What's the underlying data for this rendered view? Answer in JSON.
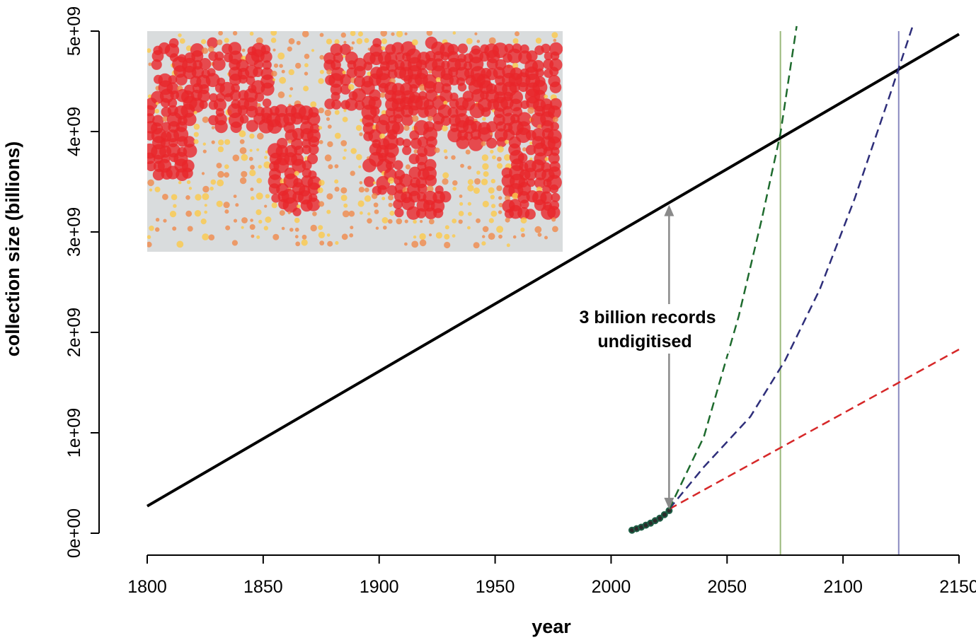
{
  "chart_data": {
    "type": "line",
    "title": "",
    "xlabel": "year",
    "ylabel": "collection size (billions)",
    "xlim": [
      1800,
      2150
    ],
    "ylim": [
      0,
      5000000000
    ],
    "x_ticks": [
      1800,
      1850,
      1900,
      1950,
      2000,
      2050,
      2100,
      2150
    ],
    "x_tick_labels": [
      "1800",
      "1850",
      "1900",
      "1950",
      "2000",
      "2050",
      "2100",
      "2150"
    ],
    "y_ticks": [
      0,
      1000000000,
      2000000000,
      3000000000,
      4000000000,
      5000000000
    ],
    "y_tick_labels": [
      "0e+00",
      "1e+09",
      "2e+09",
      "3e+09",
      "4e+09",
      "5e+09"
    ],
    "grid": false,
    "series": [
      {
        "style": "solid",
        "color": "#000000",
        "x": [
          1800,
          2150
        ],
        "y": [
          270000000,
          4970000000
        ]
      },
      {
        "style": "points",
        "color": "#1f5f46",
        "x": [
          2009,
          2011,
          2013,
          2015,
          2017,
          2019,
          2021,
          2023,
          2025
        ],
        "y": [
          30000000,
          45000000,
          60000000,
          80000000,
          100000000,
          125000000,
          150000000,
          185000000,
          225000000
        ]
      },
      {
        "style": "dashed",
        "color": "#d62728",
        "x": [
          2025,
          2150
        ],
        "y": [
          240000000,
          1830000000
        ]
      },
      {
        "style": "dashed",
        "color": "#2e2e7a",
        "x": [
          2025,
          2040,
          2060,
          2075,
          2090,
          2105,
          2120,
          2130
        ],
        "y": [
          240000000,
          660000000,
          1160000000,
          1720000000,
          2430000000,
          3330000000,
          4350000000,
          5050000000
        ]
      },
      {
        "style": "dashed",
        "color": "#1e6b2e",
        "x": [
          2025,
          2040,
          2055,
          2065,
          2073,
          2080
        ],
        "y": [
          240000000,
          960000000,
          2160000000,
          3130000000,
          3980000000,
          5050000000
        ]
      }
    ],
    "vlines": [
      {
        "x": 2073,
        "color": "#9ab87a"
      },
      {
        "x": 2124,
        "color": "#8a8ac0"
      }
    ],
    "annotation": {
      "lines": [
        "3 billion records",
        "undigitised"
      ],
      "arrow_x": 2025,
      "arrow_y": [
        240000000,
        3270000000
      ],
      "arrow_color": "#8a8a8a"
    },
    "inset": {
      "kind": "world-map",
      "point_colors": [
        "#e8262b",
        "#f08a4b",
        "#fbc94a"
      ],
      "land_color": "#d9dcdd"
    }
  }
}
